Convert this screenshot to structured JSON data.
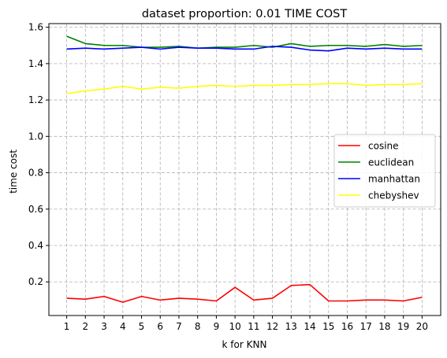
{
  "chart_data": {
    "type": "line",
    "title": "dataset proportion: 0.01 TIME COST",
    "xlabel": "k for KNN",
    "ylabel": "time cost",
    "x": [
      1,
      2,
      3,
      4,
      5,
      6,
      7,
      8,
      9,
      10,
      11,
      12,
      13,
      14,
      15,
      16,
      17,
      18,
      19,
      20
    ],
    "xticks": [
      "1",
      "2",
      "3",
      "4",
      "5",
      "6",
      "7",
      "8",
      "9",
      "10",
      "11",
      "12",
      "13",
      "14",
      "15",
      "16",
      "17",
      "18",
      "19",
      "20"
    ],
    "yticks": [
      "0.2",
      "0.4",
      "0.6",
      "0.8",
      "1.0",
      "1.2",
      "1.4",
      "1.6"
    ],
    "ytick_values": [
      0.2,
      0.4,
      0.6,
      0.8,
      1.0,
      1.2,
      1.4,
      1.6
    ],
    "ylim": [
      0.015,
      1.62
    ],
    "grid": true,
    "legend_position": "center-right",
    "series": [
      {
        "name": "cosine",
        "color": "#ff0000",
        "values": [
          0.11,
          0.105,
          0.12,
          0.088,
          0.12,
          0.1,
          0.11,
          0.105,
          0.095,
          0.17,
          0.1,
          0.11,
          0.18,
          0.185,
          0.095,
          0.095,
          0.1,
          0.1,
          0.095,
          0.115
        ]
      },
      {
        "name": "euclidean",
        "color": "#008000",
        "values": [
          1.55,
          1.51,
          1.5,
          1.5,
          1.49,
          1.49,
          1.495,
          1.485,
          1.49,
          1.49,
          1.5,
          1.49,
          1.51,
          1.495,
          1.5,
          1.5,
          1.495,
          1.505,
          1.495,
          1.5
        ]
      },
      {
        "name": "manhattan",
        "color": "#0000ff",
        "values": [
          1.48,
          1.485,
          1.48,
          1.485,
          1.49,
          1.48,
          1.49,
          1.485,
          1.485,
          1.48,
          1.48,
          1.495,
          1.49,
          1.475,
          1.47,
          1.485,
          1.48,
          1.485,
          1.48,
          1.48
        ]
      },
      {
        "name": "chebyshev",
        "color": "#ffff00",
        "values": [
          1.235,
          1.25,
          1.26,
          1.275,
          1.26,
          1.27,
          1.265,
          1.275,
          1.28,
          1.275,
          1.28,
          1.28,
          1.285,
          1.285,
          1.29,
          1.29,
          1.28,
          1.285,
          1.285,
          1.29
        ]
      }
    ]
  }
}
